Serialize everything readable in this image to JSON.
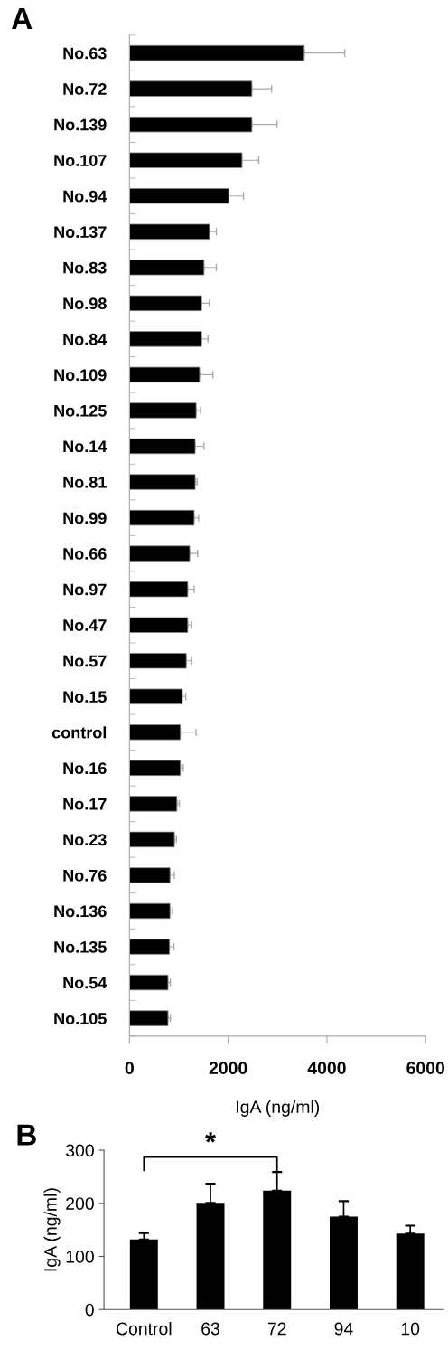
{
  "chart_data": [
    {
      "type": "bar",
      "title": "A",
      "orientation": "horizontal",
      "color": "#000000",
      "xlabel": "IgA (ng/ml)",
      "categories": [
        "No.63",
        "No.72",
        "No.139",
        "No.107",
        "No.94",
        "No.137",
        "No.83",
        "No.98",
        "No.84",
        "No.109",
        "No.125",
        "No.14",
        "No.81",
        "No.99",
        "No.66",
        "No.97",
        "No.47",
        "No.57",
        "No.15",
        "control",
        "No.16",
        "No.17",
        "No.23",
        "No.76",
        "No.136",
        "No.135",
        "No.54",
        "No.105"
      ],
      "values": [
        3540,
        2480,
        2480,
        2280,
        2010,
        1620,
        1510,
        1460,
        1460,
        1420,
        1350,
        1330,
        1330,
        1310,
        1220,
        1180,
        1180,
        1150,
        1070,
        1030,
        1030,
        960,
        910,
        820,
        820,
        810,
        780,
        780
      ],
      "errors": [
        [
          3540,
          4360
        ],
        [
          2480,
          2880
        ],
        [
          2480,
          2990
        ],
        [
          2280,
          2620
        ],
        [
          2010,
          2310
        ],
        [
          1620,
          1760
        ],
        [
          1510,
          1760
        ],
        [
          1460,
          1620
        ],
        [
          1460,
          1590
        ],
        [
          1420,
          1690
        ],
        [
          1350,
          1440
        ],
        [
          1330,
          1510
        ],
        [
          1330,
          1370
        ],
        [
          1310,
          1400
        ],
        [
          1220,
          1380
        ],
        [
          1180,
          1310
        ],
        [
          1180,
          1260
        ],
        [
          1150,
          1260
        ],
        [
          1070,
          1140
        ],
        [
          1030,
          1350
        ],
        [
          1030,
          1090
        ],
        [
          960,
          1010
        ],
        [
          910,
          950
        ],
        [
          820,
          910
        ],
        [
          820,
          870
        ],
        [
          810,
          900
        ],
        [
          780,
          830
        ],
        [
          780,
          830
        ]
      ],
      "xlim": [
        0,
        6000
      ],
      "xticks": [
        0,
        2000,
        4000,
        6000
      ]
    },
    {
      "type": "bar",
      "title": "B",
      "color": "#000000",
      "ylabel": "IgA (ng/ml)",
      "categories": [
        "Control",
        "63",
        "72",
        "94",
        "10"
      ],
      "values": [
        132,
        201,
        224,
        175,
        143
      ],
      "errors": [
        [
          132,
          144
        ],
        [
          201,
          237
        ],
        [
          224,
          259
        ],
        [
          175,
          204
        ],
        [
          143,
          158
        ]
      ],
      "ylim": [
        0,
        300
      ],
      "yticks": [
        0,
        100,
        200,
        300
      ],
      "annotations": [
        "*"
      ]
    }
  ]
}
